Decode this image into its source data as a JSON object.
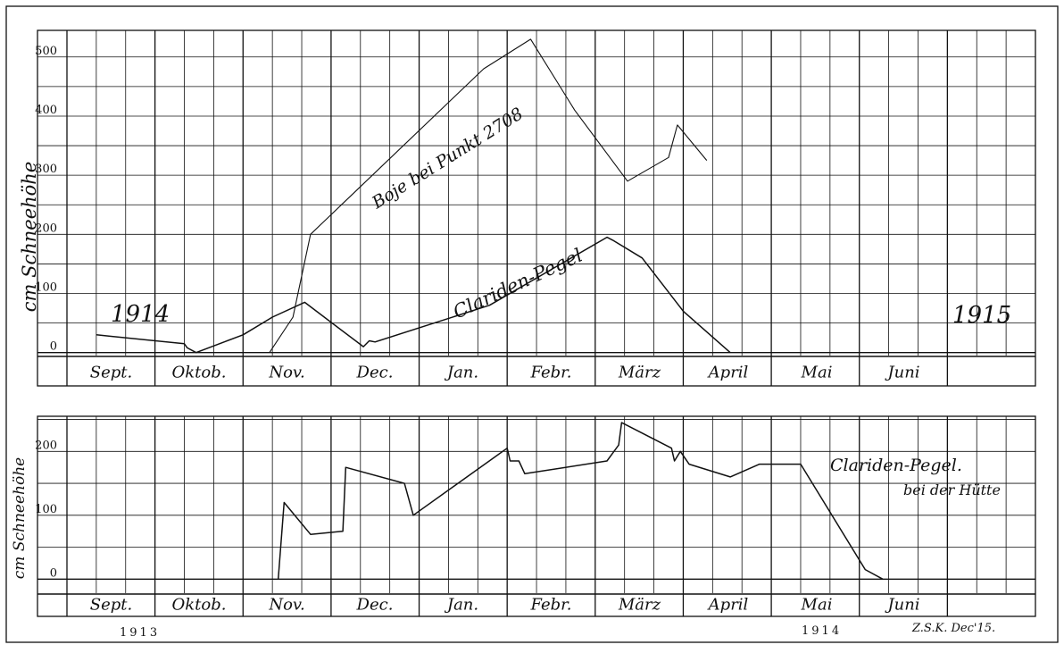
{
  "chart_data": [
    {
      "type": "line",
      "ylabel": "cm Schneehöhe",
      "yticks": [
        0,
        100,
        200,
        300,
        400,
        500
      ],
      "ylim": [
        -5,
        545
      ],
      "months": [
        "Sept.",
        "Oktob.",
        "Nov.",
        "Dec.",
        "Jan.",
        "Febr.",
        "März",
        "April",
        "Mai",
        "Juni"
      ],
      "year_labels": [
        "1914",
        "1915"
      ],
      "grid": true,
      "series": [
        {
          "name": "Boje bei Punkt 2708",
          "points": [
            [
              6.9,
              0
            ],
            [
              7.7,
              60
            ],
            [
              8.3,
              200
            ],
            [
              14.2,
              480
            ],
            [
              15.8,
              530
            ],
            [
              17.3,
              410
            ],
            [
              19.1,
              290
            ],
            [
              20.5,
              330
            ],
            [
              20.8,
              385
            ],
            [
              21.8,
              325
            ]
          ]
        },
        {
          "name": "Clariden-Pegel",
          "points": [
            [
              1.0,
              30
            ],
            [
              4.0,
              15
            ],
            [
              4.1,
              8
            ],
            [
              4.4,
              0
            ],
            [
              6.0,
              30
            ],
            [
              7.0,
              60
            ],
            [
              8.1,
              85
            ],
            [
              10.1,
              10
            ],
            [
              10.3,
              20
            ],
            [
              10.5,
              18
            ],
            [
              14.4,
              80
            ],
            [
              18.4,
              195
            ],
            [
              18.6,
              190
            ],
            [
              19.6,
              160
            ],
            [
              21.0,
              70
            ],
            [
              22.6,
              0
            ]
          ]
        }
      ]
    },
    {
      "type": "line",
      "ylabel": "cm Schneehöhe",
      "yticks": [
        0,
        100,
        200
      ],
      "ylim": [
        -22,
        255
      ],
      "months": [
        "Sept.",
        "Oktob.",
        "Nov.",
        "Dec.",
        "Jan.",
        "Febr.",
        "März",
        "April",
        "Mai",
        "Juni"
      ],
      "year_labels": [
        "1913",
        "1914"
      ],
      "signature": "Z.S.K. Dec'15.",
      "grid": true,
      "series": [
        {
          "name": "Clariden-Pegel. bei der Hütte",
          "points": [
            [
              7.2,
              0
            ],
            [
              7.3,
              60
            ],
            [
              7.4,
              120
            ],
            [
              8.3,
              70
            ],
            [
              9.4,
              75
            ],
            [
              9.5,
              175
            ],
            [
              11.5,
              150
            ],
            [
              11.8,
              100
            ],
            [
              15.0,
              205
            ],
            [
              15.1,
              185
            ],
            [
              15.4,
              185
            ],
            [
              15.6,
              165
            ],
            [
              18.4,
              185
            ],
            [
              18.8,
              210
            ],
            [
              18.9,
              245
            ],
            [
              20.6,
              205
            ],
            [
              20.7,
              185
            ],
            [
              20.9,
              200
            ],
            [
              21.2,
              180
            ],
            [
              22.6,
              160
            ],
            [
              23.6,
              180
            ],
            [
              25.0,
              180
            ],
            [
              27.2,
              15
            ],
            [
              27.8,
              0
            ]
          ]
        }
      ]
    }
  ]
}
